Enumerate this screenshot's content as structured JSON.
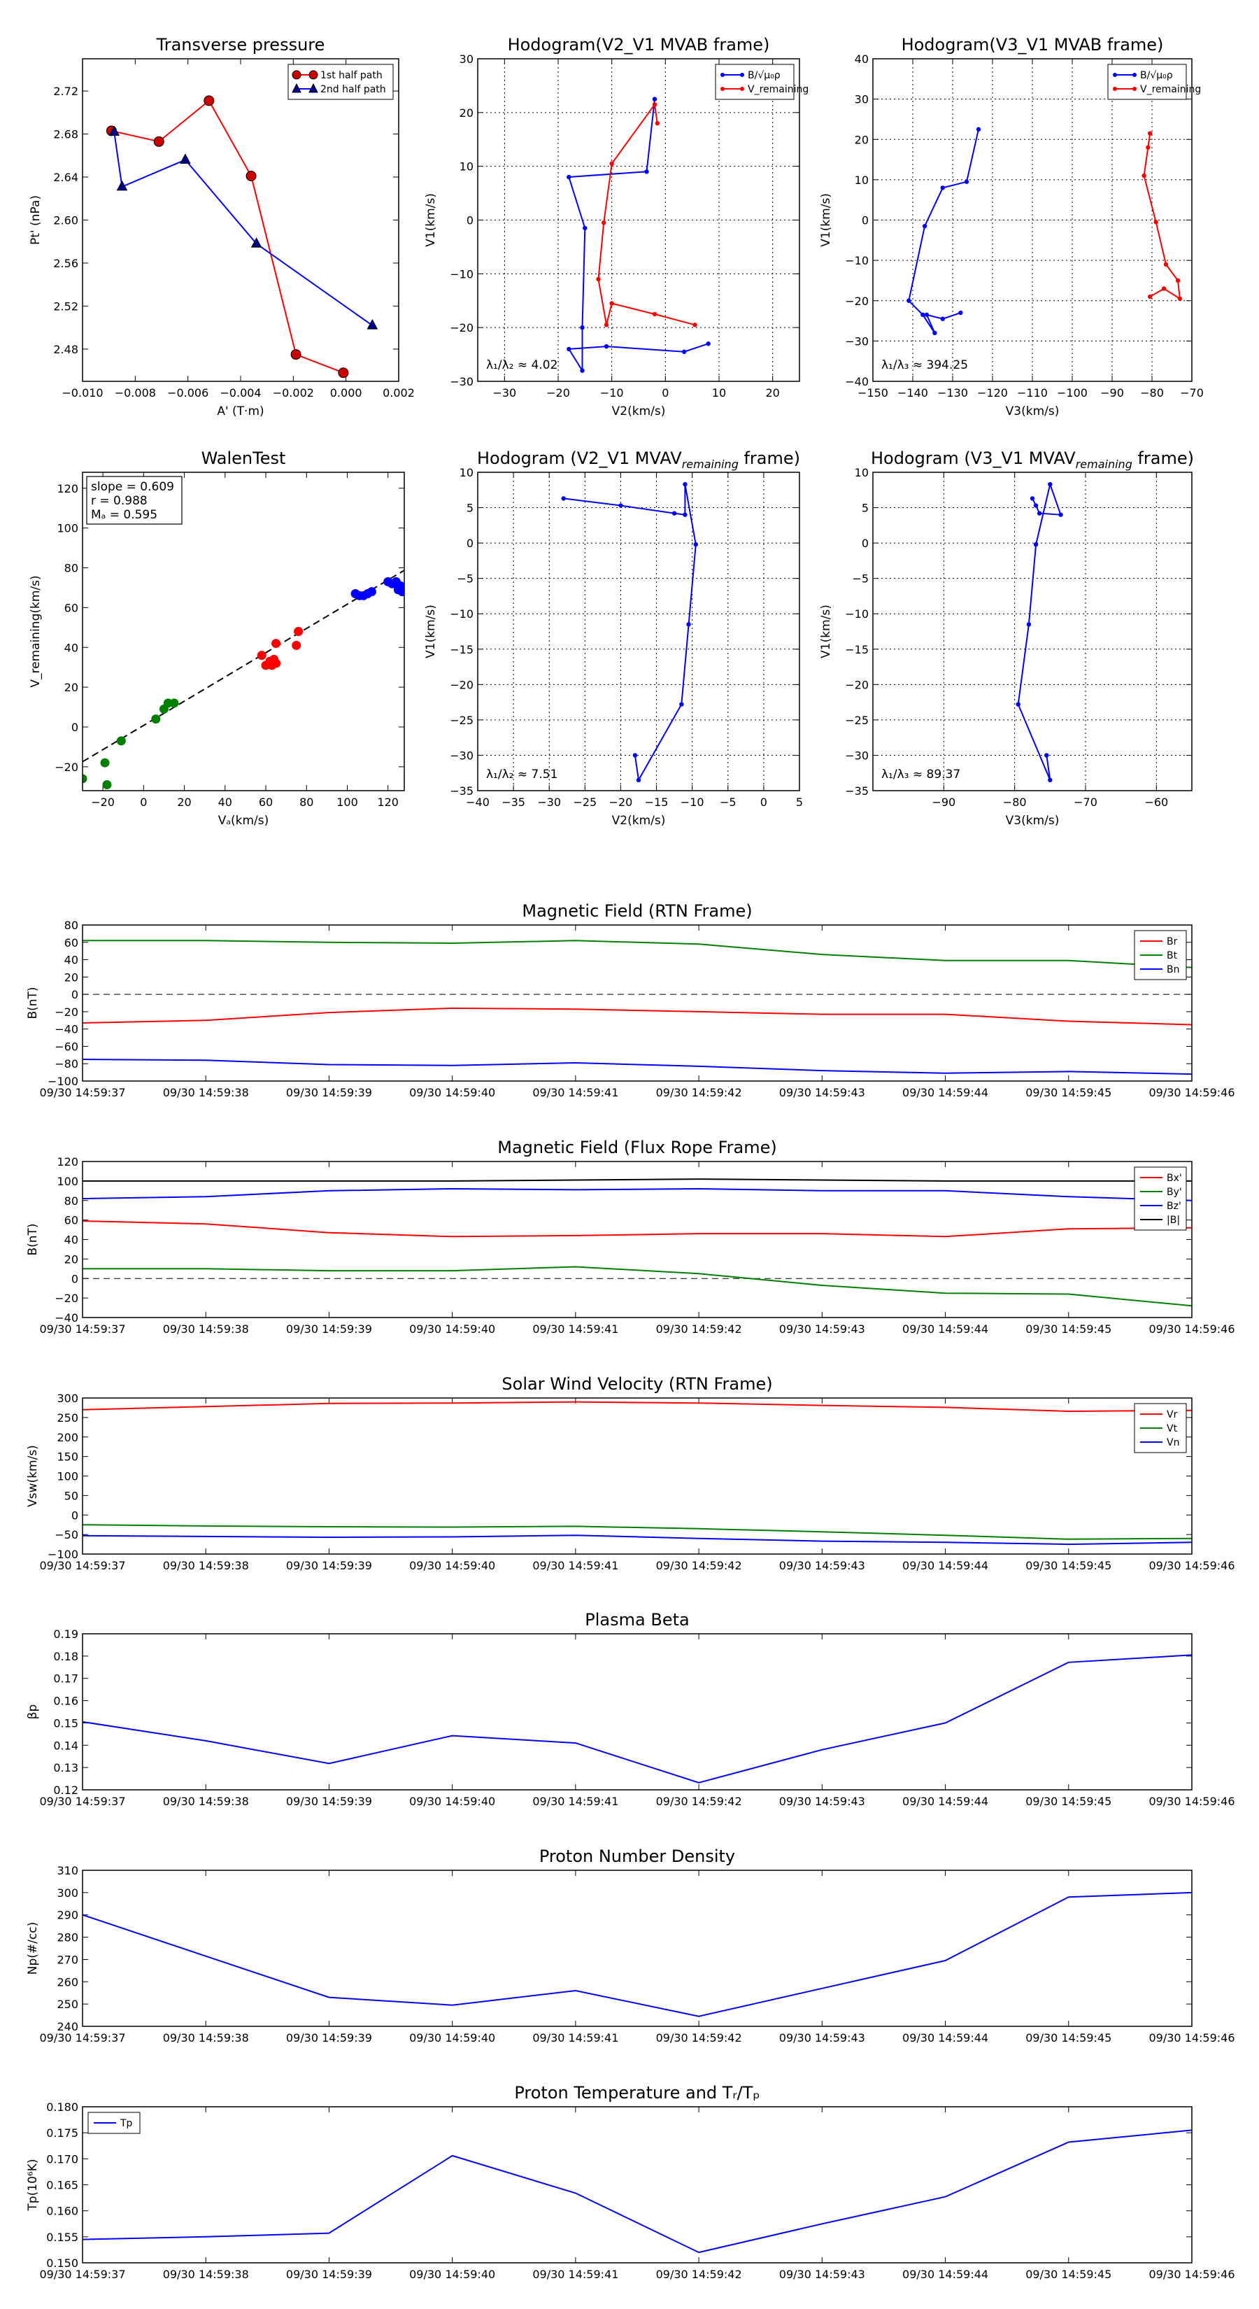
{
  "figure": {
    "background": "#ffffff"
  },
  "time_ticks": [
    "09/30 14:59:37",
    "09/30 14:59:38",
    "09/30 14:59:39",
    "09/30 14:59:40",
    "09/30 14:59:41",
    "09/30 14:59:42",
    "09/30 14:59:43",
    "09/30 14:59:44",
    "09/30 14:59:45",
    "09/30 14:59:46"
  ],
  "chart_data": [
    {
      "id": "transverse-pressure",
      "type": "line",
      "title": "Transverse pressure",
      "xlabel": "A' (T·m)",
      "ylabel": "Pt' (nPa)",
      "xlim": [
        -0.01,
        0.002
      ],
      "ylim": [
        2.45,
        2.75
      ],
      "xticks": [
        -0.01,
        -0.008,
        -0.006,
        -0.004,
        -0.002,
        0.0,
        0.002
      ],
      "xtick_labels": [
        "−0.010",
        "−0.008",
        "−0.006",
        "−0.004",
        "−0.002",
        "0.000",
        "0.002"
      ],
      "yticks": [
        2.48,
        2.52,
        2.56,
        2.6,
        2.64,
        2.68,
        2.72
      ],
      "ytick_labels": [
        "2.48",
        "2.52",
        "2.56",
        "2.60",
        "2.64",
        "2.68",
        "2.72"
      ],
      "grid": false,
      "legend_position": "top-right",
      "series": [
        {
          "name": "1st half path",
          "color": "#ff0000",
          "marker": "circle",
          "marker_color": "#cc0000",
          "x": [
            -0.0089,
            -0.0071,
            -0.0052,
            -0.0036,
            -0.0019,
            -0.0001
          ],
          "y": [
            2.683,
            2.673,
            2.711,
            2.641,
            2.475,
            2.458
          ]
        },
        {
          "name": "2nd half path",
          "color": "#0000ff",
          "marker": "triangle",
          "marker_color": "#00008b",
          "x": [
            -0.0088,
            -0.0085,
            -0.0061,
            -0.0034,
            0.001
          ],
          "y": [
            2.682,
            2.631,
            2.656,
            2.578,
            2.502
          ]
        }
      ]
    },
    {
      "id": "hodogram-v2v1-mvab",
      "type": "line",
      "title": "Hodogram(V2_V1 MVAB frame)",
      "xlabel": "V2(km/s)",
      "ylabel": "V1(km/s)",
      "xlim": [
        -35,
        25
      ],
      "ylim": [
        -30,
        30
      ],
      "xticks": [
        -30,
        -20,
        -10,
        0,
        10,
        20
      ],
      "xtick_labels": [
        "−30",
        "−20",
        "−10",
        "0",
        "10",
        "20"
      ],
      "yticks": [
        -30,
        -20,
        -10,
        0,
        10,
        20,
        30
      ],
      "ytick_labels": [
        "−30",
        "−20",
        "−10",
        "0",
        "10",
        "20",
        "30"
      ],
      "grid": true,
      "legend_position": "top-right",
      "legend_labels": [
        "B/√μ₀ρ",
        "V_remaining"
      ],
      "annotation": "λ₁/λ₂ ≈ 4.02",
      "series": [
        {
          "name": "B/√μ₀ρ",
          "color": "#0000ff",
          "marker": "dot",
          "x": [
            -2,
            -3.5,
            -18,
            -15,
            -15.5,
            -15.5,
            -18,
            -11,
            3.5,
            8
          ],
          "y": [
            22.5,
            9,
            8,
            -1.5,
            -20,
            -28,
            -24,
            -23.5,
            -24.5,
            -23
          ]
        },
        {
          "name": "V_remaining",
          "color": "#ff0000",
          "marker": "dot",
          "x": [
            -1.5,
            -2,
            -10,
            -11.5,
            -12.5,
            -11,
            -10,
            -2,
            5.5
          ],
          "y": [
            18,
            21.5,
            10.5,
            -0.5,
            -11,
            -19.5,
            -15.5,
            -17.5,
            -19.5
          ]
        }
      ]
    },
    {
      "id": "hodogram-v3v1-mvab",
      "type": "line",
      "title": "Hodogram(V3_V1 MVAB frame)",
      "xlabel": "V3(km/s)",
      "ylabel": "V1(km/s)",
      "xlim": [
        -150,
        -70
      ],
      "ylim": [
        -40,
        40
      ],
      "xticks": [
        -150,
        -140,
        -130,
        -120,
        -110,
        -100,
        -90,
        -80,
        -70
      ],
      "xtick_labels": [
        "−150",
        "−140",
        "−130",
        "−120",
        "−110",
        "−100",
        "−90",
        "−80",
        "−70"
      ],
      "yticks": [
        -40,
        -30,
        -20,
        -10,
        0,
        10,
        20,
        30,
        40
      ],
      "ytick_labels": [
        "−40",
        "−30",
        "−20",
        "−10",
        "0",
        "10",
        "20",
        "30",
        "40"
      ],
      "grid": true,
      "legend_position": "top-right",
      "legend_labels": [
        "B/√μ₀ρ",
        "V_remaining"
      ],
      "annotation": "λ₁/λ₃ ≈ 394.25",
      "series": [
        {
          "name": "B/√μ₀ρ",
          "color": "#0000ff",
          "marker": "dot",
          "x": [
            -123.5,
            -126.5,
            -132.5,
            -137,
            -141,
            -137.5,
            -134.5,
            -136.5,
            -132.5,
            -128
          ],
          "y": [
            22.5,
            9.5,
            8,
            -1.5,
            -20,
            -23.5,
            -28,
            -23.5,
            -24.5,
            -23
          ]
        },
        {
          "name": "V_remaining",
          "color": "#ff0000",
          "marker": "dot",
          "x": [
            -80.5,
            -81,
            -82,
            -79,
            -76.5,
            -73.5,
            -73,
            -77,
            -80.5
          ],
          "y": [
            21.5,
            18,
            11,
            -0.5,
            -11,
            -15,
            -19.5,
            -17,
            -19
          ]
        }
      ]
    },
    {
      "id": "walen-test",
      "type": "scatter",
      "title": "WalenTest",
      "xlabel": "Vₐ(km/s)",
      "ylabel": "V_remaining(km/s)",
      "xlim": [
        -30,
        128
      ],
      "ylim": [
        -32,
        128
      ],
      "xticks": [
        -20,
        0,
        20,
        40,
        60,
        80,
        100,
        120
      ],
      "xtick_labels": [
        "−20",
        "0",
        "20",
        "40",
        "60",
        "80",
        "100",
        "120"
      ],
      "yticks": [
        -20,
        0,
        20,
        40,
        60,
        80,
        100,
        120
      ],
      "ytick_labels": [
        "−20",
        "0",
        "20",
        "40",
        "60",
        "80",
        "100",
        "120"
      ],
      "grid": false,
      "stats_lines": [
        "slope = 0.609",
        "r = 0.988",
        "Mₐ = 0.595"
      ],
      "fit_line": {
        "slope": 0.609,
        "intercept": 0.8,
        "color": "#000000",
        "style": "dashed"
      },
      "series": [
        {
          "name": "group-1",
          "color": "#008000",
          "x": [
            -30,
            -19,
            -18,
            -11,
            6,
            10,
            12,
            15
          ],
          "y": [
            -26,
            -18,
            -29,
            -7,
            4,
            9,
            12,
            12
          ]
        },
        {
          "name": "group-2",
          "color": "#ff0000",
          "x": [
            58,
            60,
            62,
            63,
            64,
            65,
            65,
            75,
            76
          ],
          "y": [
            36,
            31,
            33,
            31,
            34,
            32,
            42,
            41,
            48
          ]
        },
        {
          "name": "group-3",
          "color": "#0000ff",
          "x": [
            104,
            106,
            108,
            110,
            112,
            120,
            122,
            124,
            125,
            126,
            127,
            128
          ],
          "y": [
            67,
            66,
            66,
            67,
            68,
            73,
            72,
            73,
            69,
            71,
            68,
            69
          ]
        }
      ]
    },
    {
      "id": "hodogram-v2v1-mvav",
      "type": "line",
      "title": "Hodogram (V2_V1 MVAV",
      "title_subscript": "remaining",
      "title_tail": " frame)",
      "xlabel": "V2(km/s)",
      "ylabel": "V1(km/s)",
      "xlim": [
        -40,
        5
      ],
      "ylim": [
        -35,
        10
      ],
      "xticks": [
        -40,
        -35,
        -30,
        -25,
        -20,
        -15,
        -10,
        -5,
        0,
        5
      ],
      "xtick_labels": [
        "−40",
        "−35",
        "−30",
        "−25",
        "−20",
        "−15",
        "−10",
        "−5",
        "0",
        "5"
      ],
      "yticks": [
        -35,
        -30,
        -25,
        -20,
        -15,
        -10,
        -5,
        0,
        5,
        10
      ],
      "ytick_labels": [
        "−35",
        "−30",
        "−25",
        "−20",
        "−15",
        "−10",
        "−5",
        "0",
        "5",
        "10"
      ],
      "grid": true,
      "annotation": "λ₁/λ₂ ≈ 7.51",
      "series": [
        {
          "name": "V_remaining",
          "color": "#0000ff",
          "marker": "dot",
          "x": [
            -28,
            -20,
            -12.5,
            -11,
            -11,
            -9.5,
            -10.5,
            -11.5,
            -17.5,
            -18
          ],
          "y": [
            6.3,
            5.3,
            4.2,
            4.0,
            8.3,
            -0.2,
            -11.5,
            -22.8,
            -33.5,
            -30
          ]
        }
      ]
    },
    {
      "id": "hodogram-v3v1-mvav",
      "type": "line",
      "title": "Hodogram (V3_V1 MVAV",
      "title_subscript": "remaining",
      "title_tail": " frame)",
      "xlabel": "V3(km/s)",
      "ylabel": "V1(km/s)",
      "xlim": [
        -100,
        -55
      ],
      "ylim": [
        -35,
        10
      ],
      "xticks": [
        -90,
        -80,
        -70,
        -60
      ],
      "xtick_labels": [
        "−90",
        "−80",
        "−70",
        "−60"
      ],
      "yticks": [
        -35,
        -30,
        -25,
        -20,
        -15,
        -10,
        -5,
        0,
        5,
        10
      ],
      "ytick_labels": [
        "−35",
        "−30",
        "−25",
        "−20",
        "−15",
        "−10",
        "−5",
        "0",
        "5",
        "10"
      ],
      "grid": true,
      "annotation": "λ₁/λ₃ ≈ 89.37",
      "series": [
        {
          "name": "V_remaining",
          "color": "#0000ff",
          "marker": "dot",
          "x": [
            -77.5,
            -77,
            -76.5,
            -73.5,
            -75,
            -77,
            -78,
            -79.5,
            -75,
            -75.5
          ],
          "y": [
            6.3,
            5.3,
            4.2,
            4.0,
            8.3,
            -0.2,
            -11.5,
            -22.8,
            -33.5,
            -30
          ]
        }
      ]
    },
    {
      "id": "mag-rtn",
      "type": "line",
      "title": "Magnetic Field (RTN Frame)",
      "xlabel": "",
      "ylabel": "B(nT)",
      "x": [
        0,
        1,
        2,
        3,
        4,
        5,
        6,
        7,
        8,
        9
      ],
      "xlim": [
        0,
        9
      ],
      "ylim": [
        -100,
        80
      ],
      "yticks": [
        -100,
        -80,
        -60,
        -40,
        -20,
        0,
        20,
        40,
        60,
        80
      ],
      "ytick_labels": [
        "−100",
        "−80",
        "−60",
        "−40",
        "−20",
        "0",
        "20",
        "40",
        "60",
        "80"
      ],
      "zero_line": true,
      "legend_position": "top-right",
      "series": [
        {
          "name": "Br",
          "color": "#ff0000",
          "values": [
            -33,
            -30,
            -21,
            -16,
            -17,
            -20,
            -23,
            -23,
            -31,
            -35
          ]
        },
        {
          "name": "Bt",
          "color": "#008000",
          "values": [
            62,
            62,
            60,
            59,
            62,
            58,
            46,
            39,
            39,
            31
          ]
        },
        {
          "name": "Bn",
          "color": "#0000ff",
          "values": [
            -75,
            -76,
            -81,
            -82,
            -79,
            -83,
            -88,
            -91,
            -89,
            -92
          ]
        }
      ]
    },
    {
      "id": "mag-fluxrope",
      "type": "line",
      "title": "Magnetic Field (Flux Rope Frame)",
      "xlabel": "",
      "ylabel": "B(nT)",
      "x": [
        0,
        1,
        2,
        3,
        4,
        5,
        6,
        7,
        8,
        9
      ],
      "xlim": [
        0,
        9
      ],
      "ylim": [
        -40,
        120
      ],
      "yticks": [
        -40,
        -20,
        0,
        20,
        40,
        60,
        80,
        100,
        120
      ],
      "ytick_labels": [
        "−40",
        "−20",
        "0",
        "20",
        "40",
        "60",
        "80",
        "100",
        "120"
      ],
      "zero_line": true,
      "legend_position": "top-right",
      "series": [
        {
          "name": "Bx'",
          "color": "#ff0000",
          "values": [
            59,
            56,
            47,
            43,
            44,
            46,
            46,
            43,
            51,
            52
          ]
        },
        {
          "name": "By'",
          "color": "#008000",
          "values": [
            10,
            10,
            8,
            8,
            12,
            5,
            -7,
            -15,
            -16,
            -28
          ]
        },
        {
          "name": "Bz'",
          "color": "#0000ff",
          "values": [
            82,
            84,
            90,
            92,
            91,
            92,
            90,
            90,
            84,
            80
          ]
        },
        {
          "name": "|B|",
          "color": "#000000",
          "values": [
            100,
            100,
            100,
            100,
            101,
            102,
            101,
            100,
            100,
            100
          ]
        }
      ]
    },
    {
      "id": "solar-wind",
      "type": "line",
      "title": "Solar Wind Velocity (RTN Frame)",
      "xlabel": "",
      "ylabel": "Vsw(km/s)",
      "x": [
        0,
        1,
        2,
        3,
        4,
        5,
        6,
        7,
        8,
        9
      ],
      "xlim": [
        0,
        9
      ],
      "ylim": [
        -100,
        300
      ],
      "yticks": [
        -100,
        -50,
        0,
        50,
        100,
        150,
        200,
        250,
        300
      ],
      "ytick_labels": [
        "−100",
        "−50",
        "0",
        "50",
        "100",
        "150",
        "200",
        "250",
        "300"
      ],
      "zero_line": false,
      "legend_position": "top-right",
      "series": [
        {
          "name": "Vr",
          "color": "#ff0000",
          "values": [
            270,
            278,
            286,
            287,
            290,
            287,
            281,
            276,
            266,
            268
          ]
        },
        {
          "name": "Vt",
          "color": "#008000",
          "values": [
            -25,
            -28,
            -30,
            -31,
            -29,
            -35,
            -43,
            -52,
            -62,
            -60
          ]
        },
        {
          "name": "Vn",
          "color": "#0000ff",
          "values": [
            -53,
            -55,
            -57,
            -56,
            -52,
            -60,
            -67,
            -70,
            -75,
            -70
          ]
        }
      ]
    },
    {
      "id": "plasma-beta",
      "type": "line",
      "title": "Plasma Beta",
      "xlabel": "",
      "ylabel": "βp",
      "x": [
        0,
        1,
        2,
        3,
        4,
        5,
        6,
        7,
        8,
        9
      ],
      "xlim": [
        0,
        9
      ],
      "ylim": [
        0.12,
        0.19
      ],
      "yticks": [
        0.12,
        0.13,
        0.14,
        0.15,
        0.16,
        0.17,
        0.18,
        0.19
      ],
      "ytick_labels": [
        "0.12",
        "0.13",
        "0.14",
        "0.15",
        "0.16",
        "0.17",
        "0.18",
        "0.19"
      ],
      "series": [
        {
          "name": "beta",
          "color": "#0000ff",
          "values": [
            0.1505,
            0.142,
            0.1318,
            0.1443,
            0.141,
            0.1232,
            0.138,
            0.15,
            0.1772,
            0.1805
          ]
        }
      ]
    },
    {
      "id": "proton-density",
      "type": "line",
      "title": "Proton Number Density",
      "xlabel": "",
      "ylabel": "Np(#/cc)",
      "x": [
        0,
        1,
        2,
        3,
        4,
        5,
        6,
        7,
        8,
        9
      ],
      "xlim": [
        0,
        9
      ],
      "ylim": [
        240,
        310
      ],
      "yticks": [
        240,
        250,
        260,
        270,
        280,
        290,
        300,
        310
      ],
      "ytick_labels": [
        "240",
        "250",
        "260",
        "270",
        "280",
        "290",
        "300",
        "310"
      ],
      "series": [
        {
          "name": "Np",
          "color": "#0000ff",
          "values": [
            290,
            271.5,
            253,
            249.5,
            256,
            244.5,
            257,
            269.5,
            298,
            300
          ]
        }
      ]
    },
    {
      "id": "proton-temp",
      "type": "line",
      "title": "Proton Temperature and Tᵣ/Tₚ",
      "xlabel": "",
      "ylabel": "Tp(10⁶K)",
      "x": [
        0,
        1,
        2,
        3,
        4,
        5,
        6,
        7,
        8,
        9
      ],
      "xlim": [
        0,
        9
      ],
      "ylim": [
        0.15,
        0.18
      ],
      "yticks": [
        0.15,
        0.155,
        0.16,
        0.165,
        0.17,
        0.175,
        0.18
      ],
      "ytick_labels": [
        "0.150",
        "0.155",
        "0.160",
        "0.165",
        "0.170",
        "0.175",
        "0.180"
      ],
      "legend_position": "top-left",
      "series": [
        {
          "name": "Tp",
          "color": "#0000ff",
          "values": [
            0.1545,
            0.155,
            0.1557,
            0.1706,
            0.1634,
            0.152,
            0.1575,
            0.1627,
            0.1732,
            0.1755
          ]
        }
      ]
    }
  ]
}
